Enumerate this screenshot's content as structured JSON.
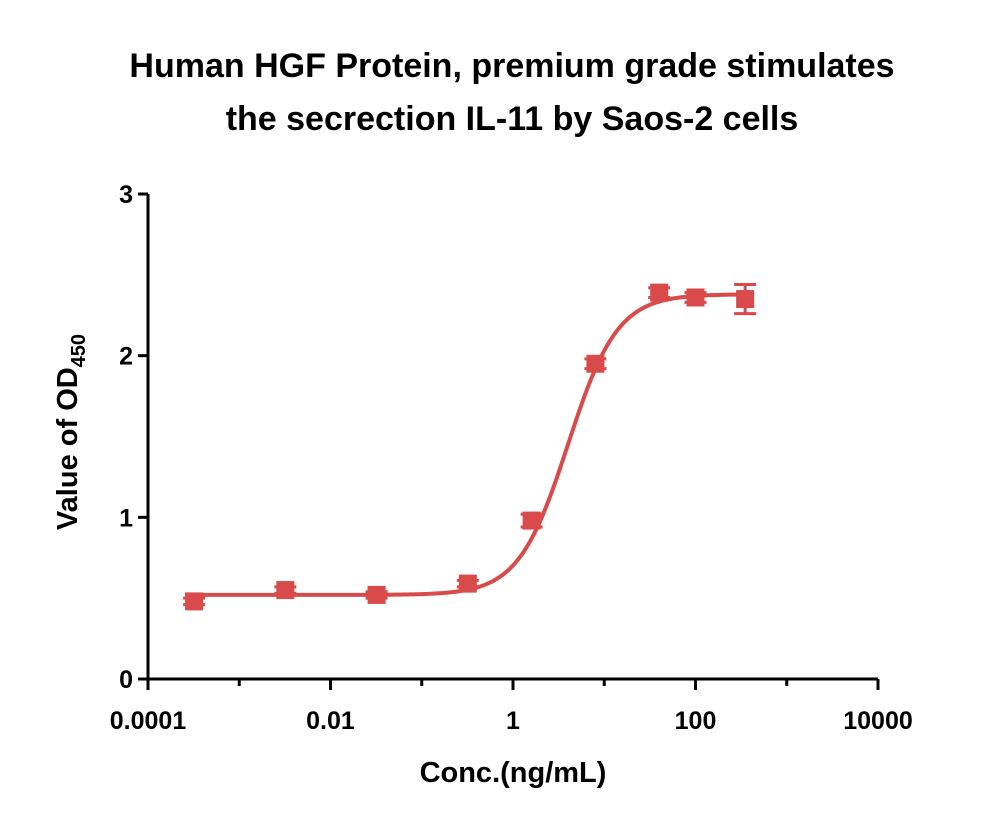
{
  "chart_data": {
    "type": "scatter",
    "title_lines": [
      "Human HGF Protein, premium grade stimulates",
      "the secrection IL-11 by Saos-2 cells"
    ],
    "xlabel": "Conc.(ng/mL)",
    "ylabel": {
      "text": "Value of OD",
      "subscript": "450"
    },
    "x_scale": "log10",
    "xlim": [
      0.0001,
      10000
    ],
    "ylim": [
      0,
      3
    ],
    "x_ticks": [
      {
        "value": 0.0001,
        "label": "0.0001"
      },
      {
        "value": 0.01,
        "label": "0.01"
      },
      {
        "value": 1,
        "label": "1"
      },
      {
        "value": 100,
        "label": "100"
      },
      {
        "value": 10000,
        "label": "10000"
      }
    ],
    "y_ticks": [
      {
        "value": 0,
        "label": "0"
      },
      {
        "value": 1,
        "label": "1"
      },
      {
        "value": 2,
        "label": "2"
      },
      {
        "value": 3,
        "label": "3"
      }
    ],
    "grid": false,
    "color": "#d94a4a",
    "series": [
      {
        "points": [
          {
            "x": 0.00032,
            "y": 0.48,
            "err": 0.02
          },
          {
            "x": 0.0032,
            "y": 0.55,
            "err": 0.02
          },
          {
            "x": 0.032,
            "y": 0.52,
            "err": 0.02
          },
          {
            "x": 0.32,
            "y": 0.59,
            "err": 0.02
          },
          {
            "x": 1.6,
            "y": 0.98,
            "err": 0.04
          },
          {
            "x": 8,
            "y": 1.95,
            "err": 0.03
          },
          {
            "x": 40,
            "y": 2.39,
            "err": 0.03
          },
          {
            "x": 100,
            "y": 2.36,
            "err": 0.03
          },
          {
            "x": 350,
            "y": 2.35,
            "err": 0.09
          }
        ],
        "fit": {
          "model": "4PL",
          "bottom": 0.52,
          "top": 2.38,
          "ec50": 4.0,
          "hill": 1.6
        }
      }
    ]
  }
}
